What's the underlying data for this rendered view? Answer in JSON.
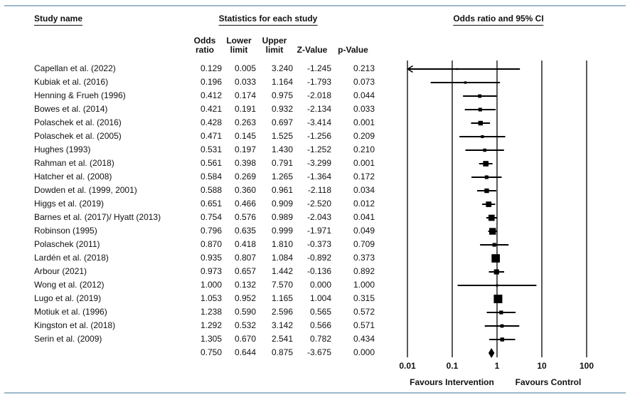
{
  "page": {
    "background": "#ffffff",
    "rule_color": "#9db8cb"
  },
  "headers": {
    "study_name": "Study name",
    "statistics": "Statistics for each study",
    "plot": "Odds ratio and 95% CI"
  },
  "columns": {
    "odds": "Odds\nratio",
    "lower": "Lower\nlimit",
    "upper": "Upper\nlimit",
    "z": "Z-Value",
    "p": "p-Value"
  },
  "chart_data": {
    "type": "forest",
    "title": "Odds ratio and 95% CI",
    "x_scale": "log10",
    "x_ticks": [
      "0.01",
      "0.1",
      "1",
      "10",
      "100"
    ],
    "x_tick_values": [
      0.01,
      0.1,
      1,
      10,
      100
    ],
    "xlim": [
      0.01,
      100
    ],
    "footer_left": "Favours Intervention",
    "footer_right": "Favours Control",
    "studies": [
      {
        "name": "Capellan et al. (2022)",
        "or": "0.129",
        "lower": "0.005",
        "upper": "3.240",
        "z": "-1.245",
        "p": "0.213"
      },
      {
        "name": "Kubiak et al. (2016)",
        "or": "0.196",
        "lower": "0.033",
        "upper": "1.164",
        "z": "-1.793",
        "p": "0.073"
      },
      {
        "name": "Henning & Frueh (1996)",
        "or": "0.412",
        "lower": "0.174",
        "upper": "0.975",
        "z": "-2.018",
        "p": "0.044"
      },
      {
        "name": "Bowes et al. (2014)",
        "or": "0.421",
        "lower": "0.191",
        "upper": "0.932",
        "z": "-2.134",
        "p": "0.033"
      },
      {
        "name": "Polaschek et al. (2016)",
        "or": "0.428",
        "lower": "0.263",
        "upper": "0.697",
        "z": "-3.414",
        "p": "0.001"
      },
      {
        "name": "Polaschek et al. (2005)",
        "or": "0.471",
        "lower": "0.145",
        "upper": "1.525",
        "z": "-1.256",
        "p": "0.209"
      },
      {
        "name": "Hughes (1993)",
        "or": "0.531",
        "lower": "0.197",
        "upper": "1.430",
        "z": "-1.252",
        "p": "0.210"
      },
      {
        "name": "Rahman et al. (2018)",
        "or": "0.561",
        "lower": "0.398",
        "upper": "0.791",
        "z": "-3.299",
        "p": "0.001"
      },
      {
        "name": "Hatcher et al. (2008)",
        "or": "0.584",
        "lower": "0.269",
        "upper": "1.265",
        "z": "-1.364",
        "p": "0.172"
      },
      {
        "name": "Dowden et al. (1999, 2001)",
        "or": "0.588",
        "lower": "0.360",
        "upper": "0.961",
        "z": "-2.118",
        "p": "0.034"
      },
      {
        "name": "Higgs et al. (2019)",
        "or": "0.651",
        "lower": "0.466",
        "upper": "0.909",
        "z": "-2.520",
        "p": "0.012"
      },
      {
        "name": "Barnes et al. (2017)/ Hyatt (2013)",
        "or": "0.754",
        "lower": "0.576",
        "upper": "0.989",
        "z": "-2.043",
        "p": "0.041"
      },
      {
        "name": "Robinson (1995)",
        "or": "0.796",
        "lower": "0.635",
        "upper": "0.999",
        "z": "-1.971",
        "p": "0.049"
      },
      {
        "name": "Polaschek (2011)",
        "or": "0.870",
        "lower": "0.418",
        "upper": "1.810",
        "z": "-0.373",
        "p": "0.709"
      },
      {
        "name": "Lardén et al. (2018)",
        "or": "0.935",
        "lower": "0.807",
        "upper": "1.084",
        "z": "-0.892",
        "p": "0.373"
      },
      {
        "name": "Arbour (2021)",
        "or": "0.973",
        "lower": "0.657",
        "upper": "1.442",
        "z": "-0.136",
        "p": "0.892"
      },
      {
        "name": "Wong et al. (2012)",
        "or": "1.000",
        "lower": "0.132",
        "upper": "7.570",
        "z": "0.000",
        "p": "1.000"
      },
      {
        "name": "Lugo et al. (2019)",
        "or": "1.053",
        "lower": "0.952",
        "upper": "1.165",
        "z": "1.004",
        "p": "0.315"
      },
      {
        "name": "Motiuk et al. (1996)",
        "or": "1.238",
        "lower": "0.590",
        "upper": "2.596",
        "z": "0.565",
        "p": "0.572"
      },
      {
        "name": "Kingston et al. (2018)",
        "or": "1.292",
        "lower": "0.532",
        "upper": "3.142",
        "z": "0.566",
        "p": "0.571"
      },
      {
        "name": "Serin et al. (2009)",
        "or": "1.305",
        "lower": "0.670",
        "upper": "2.541",
        "z": "0.782",
        "p": "0.434"
      }
    ],
    "summary": {
      "name": "",
      "or": "0.750",
      "lower": "0.644",
      "upper": "0.875",
      "z": "-3.675",
      "p": "0.000"
    }
  }
}
